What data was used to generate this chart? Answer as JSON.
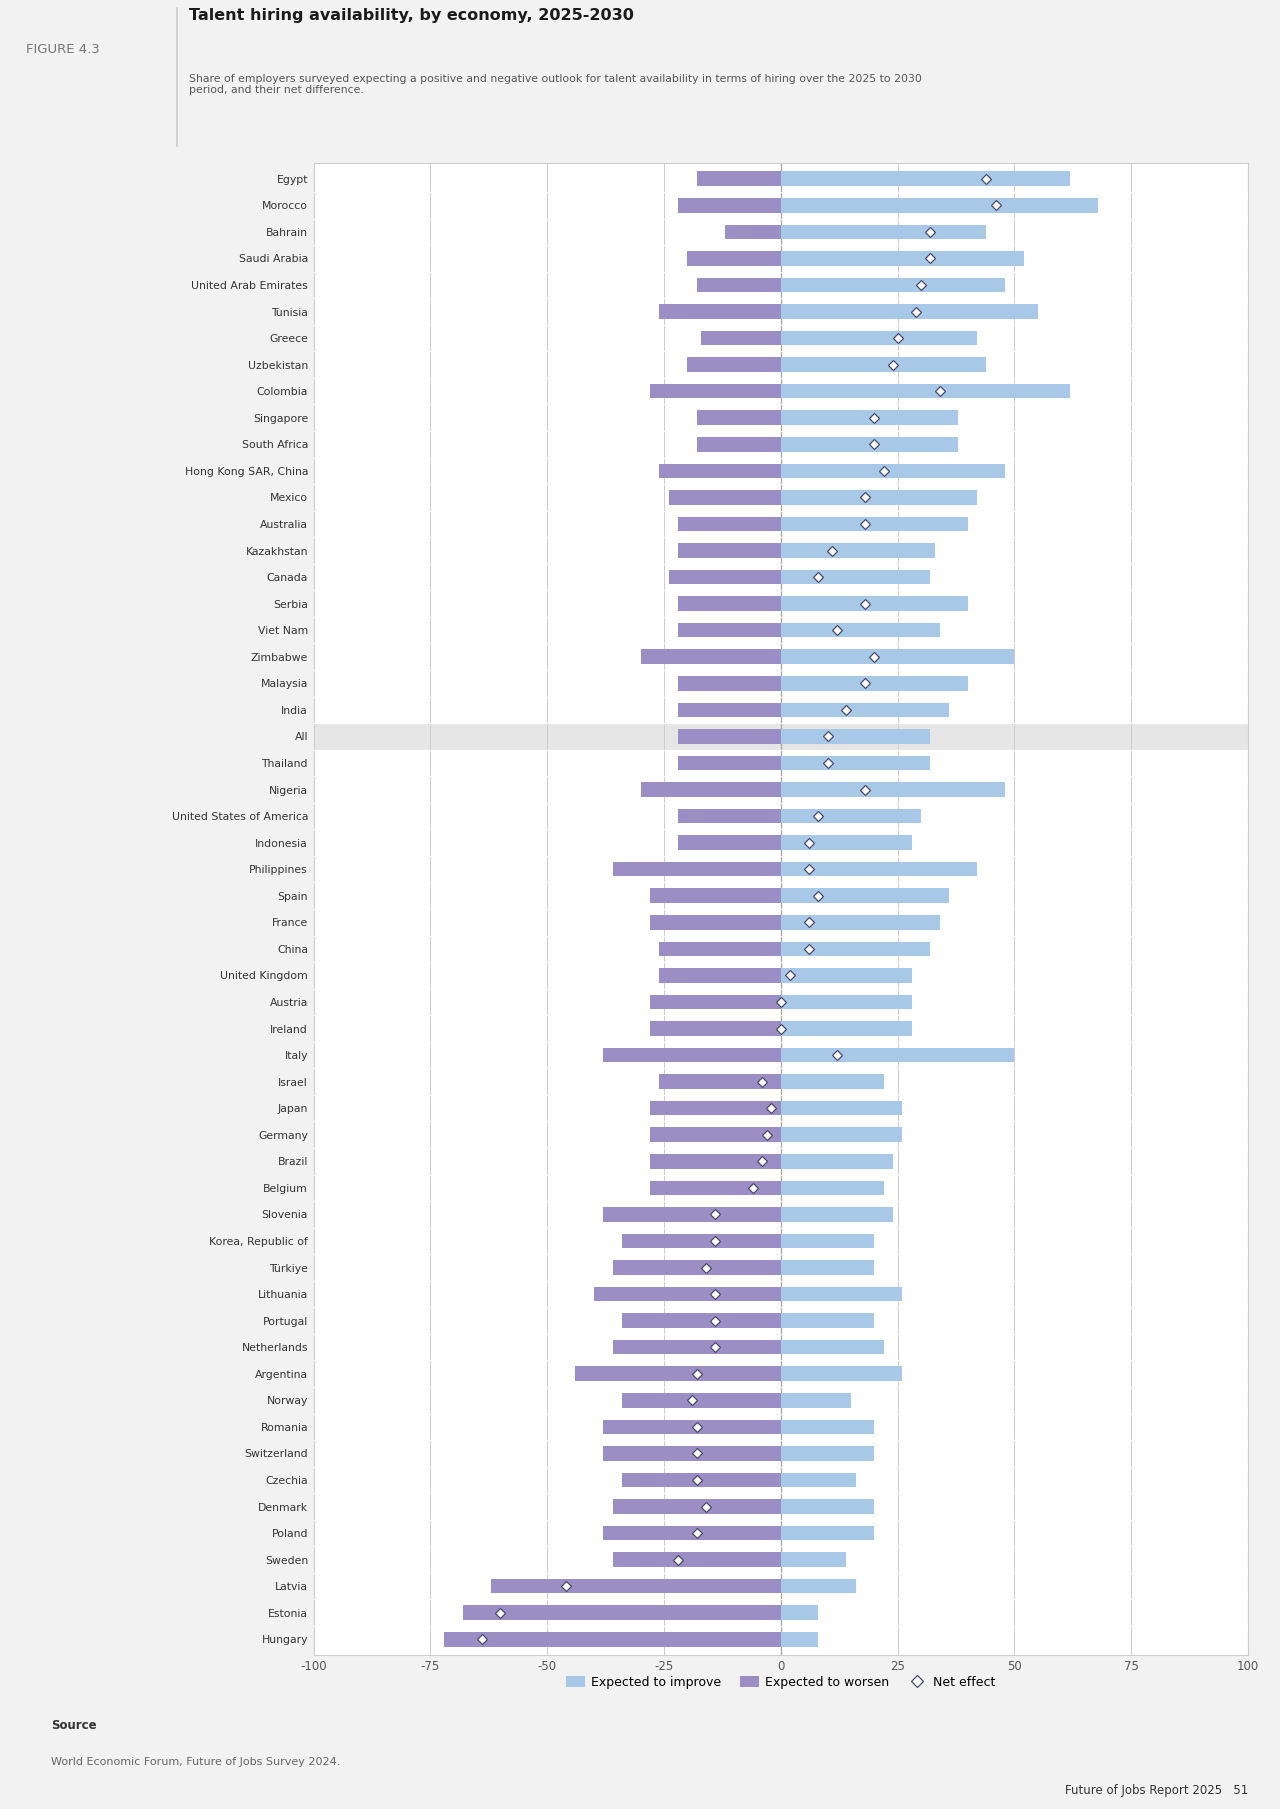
{
  "title": "Talent hiring availability, by economy, 2025-2030",
  "figure_label": "FIGURE 4.3",
  "subtitle": "Share of employers surveyed expecting a positive and negative outlook for talent availability in terms of hiring over the 2025 to 2030\nperiod, and their net difference.",
  "source_label": "Source",
  "source_text": "World Economic Forum, Future of Jobs Survey 2024.",
  "footer_text": "Future of Jobs Report 2025   51",
  "background_color": "#f2f2f2",
  "chart_bg_color": "#ffffff",
  "header_bg_color": "#ffffff",
  "bar_improve_color": "#a8c8e8",
  "bar_worsen_color": "#9b8ec4",
  "diamond_facecolor": "#ffffff",
  "diamond_edgecolor": "#4a4a6a",
  "economies": [
    "Egypt",
    "Morocco",
    "Bahrain",
    "Saudi Arabia",
    "United Arab Emirates",
    "Tunisia",
    "Greece",
    "Uzbekistan",
    "Colombia",
    "Singapore",
    "South Africa",
    "Hong Kong SAR, China",
    "Mexico",
    "Australia",
    "Kazakhstan",
    "Canada",
    "Serbia",
    "Viet Nam",
    "Zimbabwe",
    "Malaysia",
    "India",
    "All",
    "Thailand",
    "Nigeria",
    "United States of America",
    "Indonesia",
    "Philippines",
    "Spain",
    "France",
    "China",
    "United Kingdom",
    "Austria",
    "Ireland",
    "Italy",
    "Israel",
    "Japan",
    "Germany",
    "Brazil",
    "Belgium",
    "Slovenia",
    "Korea, Republic of",
    "Türkiye",
    "Lithuania",
    "Portugal",
    "Netherlands",
    "Argentina",
    "Norway",
    "Romania",
    "Switzerland",
    "Czechia",
    "Denmark",
    "Poland",
    "Sweden",
    "Latvia",
    "Estonia",
    "Hungary"
  ],
  "improve": [
    62,
    68,
    44,
    52,
    48,
    55,
    42,
    44,
    62,
    38,
    38,
    48,
    42,
    40,
    33,
    32,
    40,
    34,
    50,
    40,
    36,
    32,
    32,
    48,
    30,
    28,
    42,
    36,
    34,
    32,
    28,
    28,
    28,
    50,
    22,
    26,
    26,
    24,
    22,
    24,
    20,
    20,
    26,
    20,
    22,
    26,
    15,
    20,
    20,
    16,
    20,
    20,
    14,
    16,
    8,
    8
  ],
  "worsen": [
    -18,
    -22,
    -12,
    -20,
    -18,
    -26,
    -17,
    -20,
    -28,
    -18,
    -18,
    -26,
    -24,
    -22,
    -22,
    -24,
    -22,
    -22,
    -30,
    -22,
    -22,
    -22,
    -22,
    -30,
    -22,
    -22,
    -36,
    -28,
    -28,
    -26,
    -26,
    -28,
    -28,
    -38,
    -26,
    -28,
    -28,
    -28,
    -28,
    -38,
    -34,
    -36,
    -40,
    -34,
    -36,
    -44,
    -34,
    -38,
    -38,
    -34,
    -36,
    -38,
    -36,
    -62,
    -68,
    -72
  ],
  "net": [
    44,
    46,
    32,
    32,
    30,
    29,
    25,
    24,
    34,
    20,
    20,
    22,
    18,
    18,
    11,
    8,
    18,
    12,
    20,
    18,
    14,
    10,
    10,
    18,
    8,
    6,
    6,
    8,
    6,
    6,
    2,
    0,
    0,
    12,
    -4,
    -2,
    -3,
    -4,
    -6,
    -14,
    -14,
    -16,
    -14,
    -14,
    -14,
    -18,
    -19,
    -18,
    -18,
    -18,
    -16,
    -18,
    -22,
    -46,
    -60,
    -64
  ],
  "all_row_index": 21,
  "xlim": [
    -100,
    100
  ],
  "xticks": [
    -100,
    -75,
    -50,
    -25,
    0,
    25,
    50,
    75,
    100
  ]
}
